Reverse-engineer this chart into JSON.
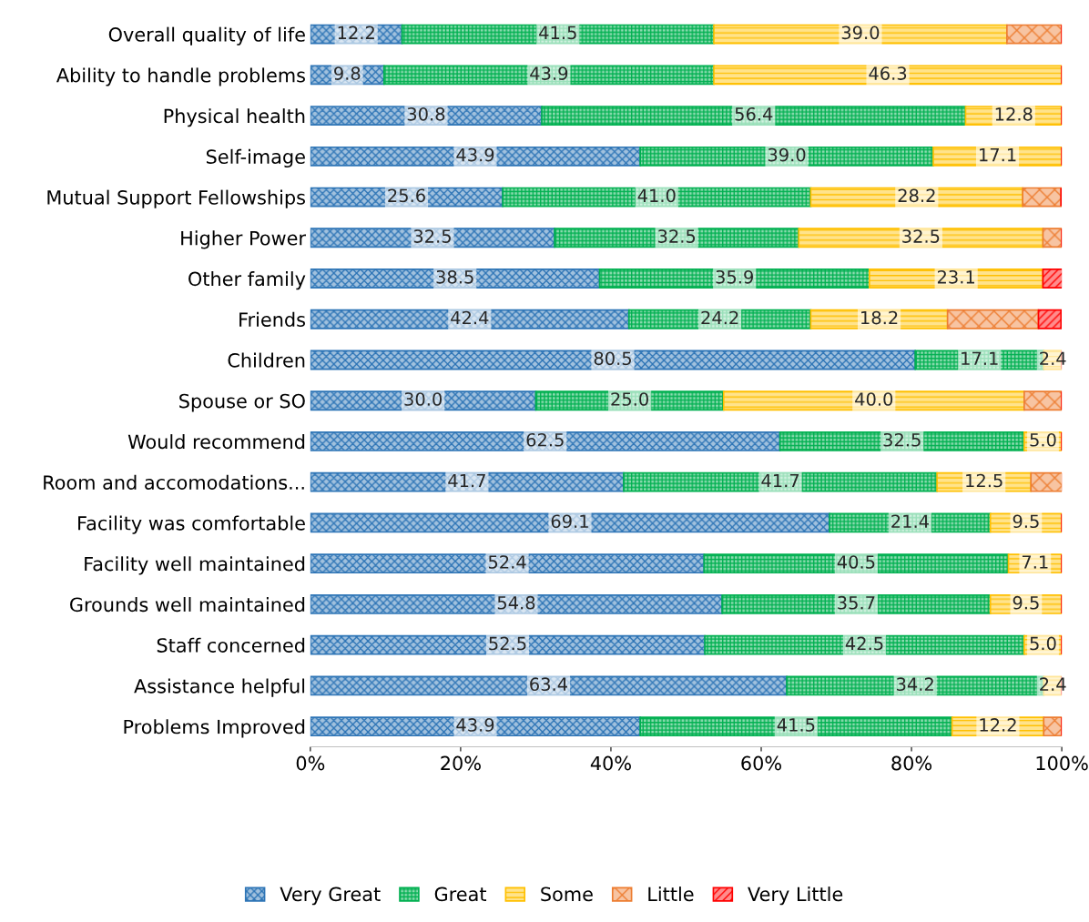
{
  "chart_data": {
    "type": "bar",
    "orientation": "horizontal",
    "stacked": true,
    "categories": [
      "Overall quality of life",
      "Ability to handle problems",
      "Physical health",
      "Self-image",
      "Mutual Support Fellowships",
      "Higher Power",
      "Other family",
      "Friends",
      "Children",
      "Spouse or SO",
      "Would recommend",
      "Room and accomodations...",
      "Facility was comfortable",
      "Facility well maintained",
      "Grounds well maintained",
      "Staff concerned",
      "Assistance helpful",
      "Problems Improved"
    ],
    "series": [
      {
        "name": "Very Great",
        "color": "#2e75b6",
        "values": [
          12.2,
          9.8,
          30.8,
          43.9,
          25.6,
          32.5,
          38.5,
          42.4,
          80.5,
          30.0,
          62.5,
          41.7,
          69.1,
          52.4,
          54.8,
          52.5,
          63.4,
          43.9
        ],
        "value_labels": [
          "12.2",
          "9.8",
          "30.8",
          "43.9",
          "25.6",
          "32.5",
          "38.5",
          "42.4",
          "80.5",
          "30.0",
          "62.5",
          "41.7",
          "69.1",
          "52.4",
          "54.8",
          "52.5",
          "63.4",
          "43.9"
        ]
      },
      {
        "name": "Great",
        "color": "#00b050",
        "values": [
          41.5,
          43.9,
          56.4,
          39.0,
          41.0,
          32.5,
          35.9,
          24.2,
          17.1,
          25.0,
          32.5,
          41.7,
          21.4,
          40.5,
          35.7,
          42.5,
          34.2,
          41.5
        ],
        "value_labels": [
          "41.5",
          "43.9",
          "56.4",
          "39.0",
          "41.0",
          "32.5",
          "35.9",
          "24.2",
          "17.1",
          "25.0",
          "32.5",
          "41.7",
          "21.4",
          "40.5",
          "35.7",
          "42.5",
          "34.2",
          "41.5"
        ]
      },
      {
        "name": "Some",
        "color": "#ffc000",
        "values": [
          39.0,
          46.3,
          12.8,
          17.1,
          28.2,
          32.5,
          23.1,
          18.2,
          2.4,
          40.0,
          5.0,
          12.5,
          9.5,
          7.1,
          9.5,
          5.0,
          2.4,
          12.2
        ],
        "value_labels": [
          "39.0",
          "46.3",
          "12.8",
          "17.1",
          "28.2",
          "32.5",
          "23.1",
          "18.2",
          "2.4",
          "40.0",
          "5.0",
          "12.5",
          "9.5",
          "7.1",
          "9.5",
          "5.0",
          "2.4",
          "12.2"
        ]
      },
      {
        "name": "Little",
        "color": "#ed7d31",
        "values": [
          7.3,
          0,
          0,
          0,
          5.1,
          2.5,
          0,
          12.1,
          0,
          5.0,
          0,
          4.2,
          0,
          0,
          0,
          0,
          0,
          2.4
        ]
      },
      {
        "name": "Very Little",
        "color": "#ff0000",
        "values": [
          0,
          0,
          0,
          0,
          0,
          0,
          2.6,
          3.0,
          0,
          0,
          0,
          0,
          0,
          0,
          0,
          0,
          0,
          0
        ]
      }
    ],
    "xlim": [
      0,
      100
    ],
    "xticks": [
      {
        "value": 0,
        "label": "0%"
      },
      {
        "value": 20,
        "label": "20%"
      },
      {
        "value": 40,
        "label": "40%"
      },
      {
        "value": 60,
        "label": "60%"
      },
      {
        "value": 80,
        "label": "80%"
      },
      {
        "value": 100,
        "label": "100%"
      }
    ],
    "grid": false,
    "legend": "bottom"
  }
}
